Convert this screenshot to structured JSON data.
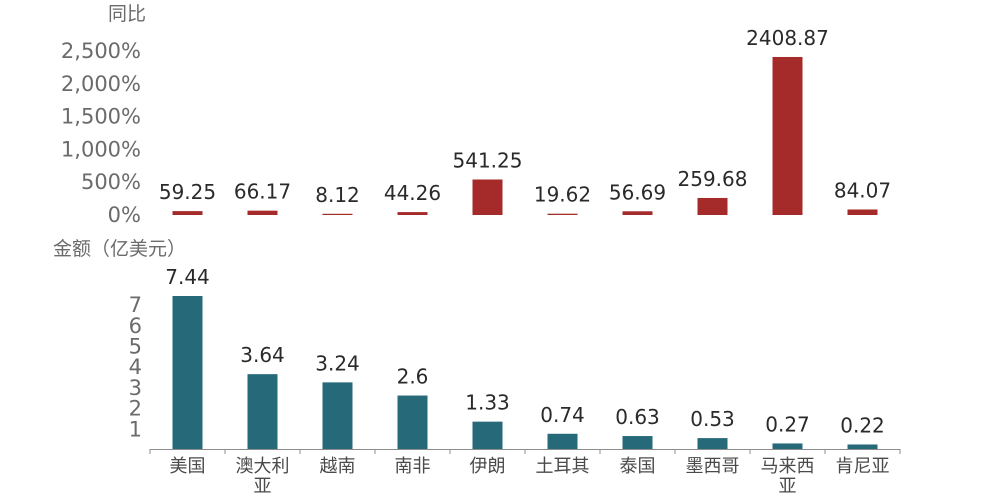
{
  "chart_data": [
    {
      "type": "bar",
      "title": "",
      "ylabel": "同比",
      "y_unit": "%",
      "ylim": [
        0,
        2500
      ],
      "yticks": [
        "2,500%",
        "2,000%",
        "1,500%",
        "1,000%",
        "500%",
        "0%"
      ],
      "ytick_values": [
        2500,
        2000,
        1500,
        1000,
        500,
        0
      ],
      "categories": [
        "美国",
        "澳大利亚",
        "越南",
        "南非",
        "伊朗",
        "土耳其",
        "泰国",
        "墨西哥",
        "马来西亚",
        "肯尼亚"
      ],
      "values": [
        59.25,
        66.17,
        8.12,
        44.26,
        541.25,
        19.62,
        56.69,
        259.68,
        2408.87,
        84.07
      ],
      "labels": [
        "59.25",
        "66.17",
        "8.12",
        "44.26",
        "541.25",
        "19.62",
        "56.69",
        "259.68",
        "2408.87",
        "84.07"
      ],
      "color": "#a52a2a"
    },
    {
      "type": "bar",
      "title": "",
      "ylabel": "金额（亿美元）",
      "ylim": [
        0,
        7.44
      ],
      "yticks": [
        "7",
        "6",
        "5",
        "4",
        "3",
        "2",
        "1"
      ],
      "ytick_values": [
        7,
        6,
        5,
        4,
        3,
        2,
        1
      ],
      "categories": [
        "美国",
        "澳大利亚",
        "越南",
        "南非",
        "伊朗",
        "土耳其",
        "泰国",
        "墨西哥",
        "马来西亚",
        "肯尼亚"
      ],
      "category_label_lines": [
        [
          "美国"
        ],
        [
          "澳大利",
          "亚"
        ],
        [
          "越南"
        ],
        [
          "南非"
        ],
        [
          "伊朗"
        ],
        [
          "土耳其"
        ],
        [
          "泰国"
        ],
        [
          "墨西哥"
        ],
        [
          "马来西",
          "亚"
        ],
        [
          "肯尼亚"
        ]
      ],
      "values": [
        7.44,
        3.64,
        3.24,
        2.6,
        1.33,
        0.74,
        0.63,
        0.53,
        0.27,
        0.22
      ],
      "labels": [
        "7.44",
        "3.64",
        "3.24",
        "2.6",
        "1.33",
        "0.74",
        "0.63",
        "0.53",
        "0.27",
        "0.22"
      ],
      "color": "#266979"
    }
  ]
}
